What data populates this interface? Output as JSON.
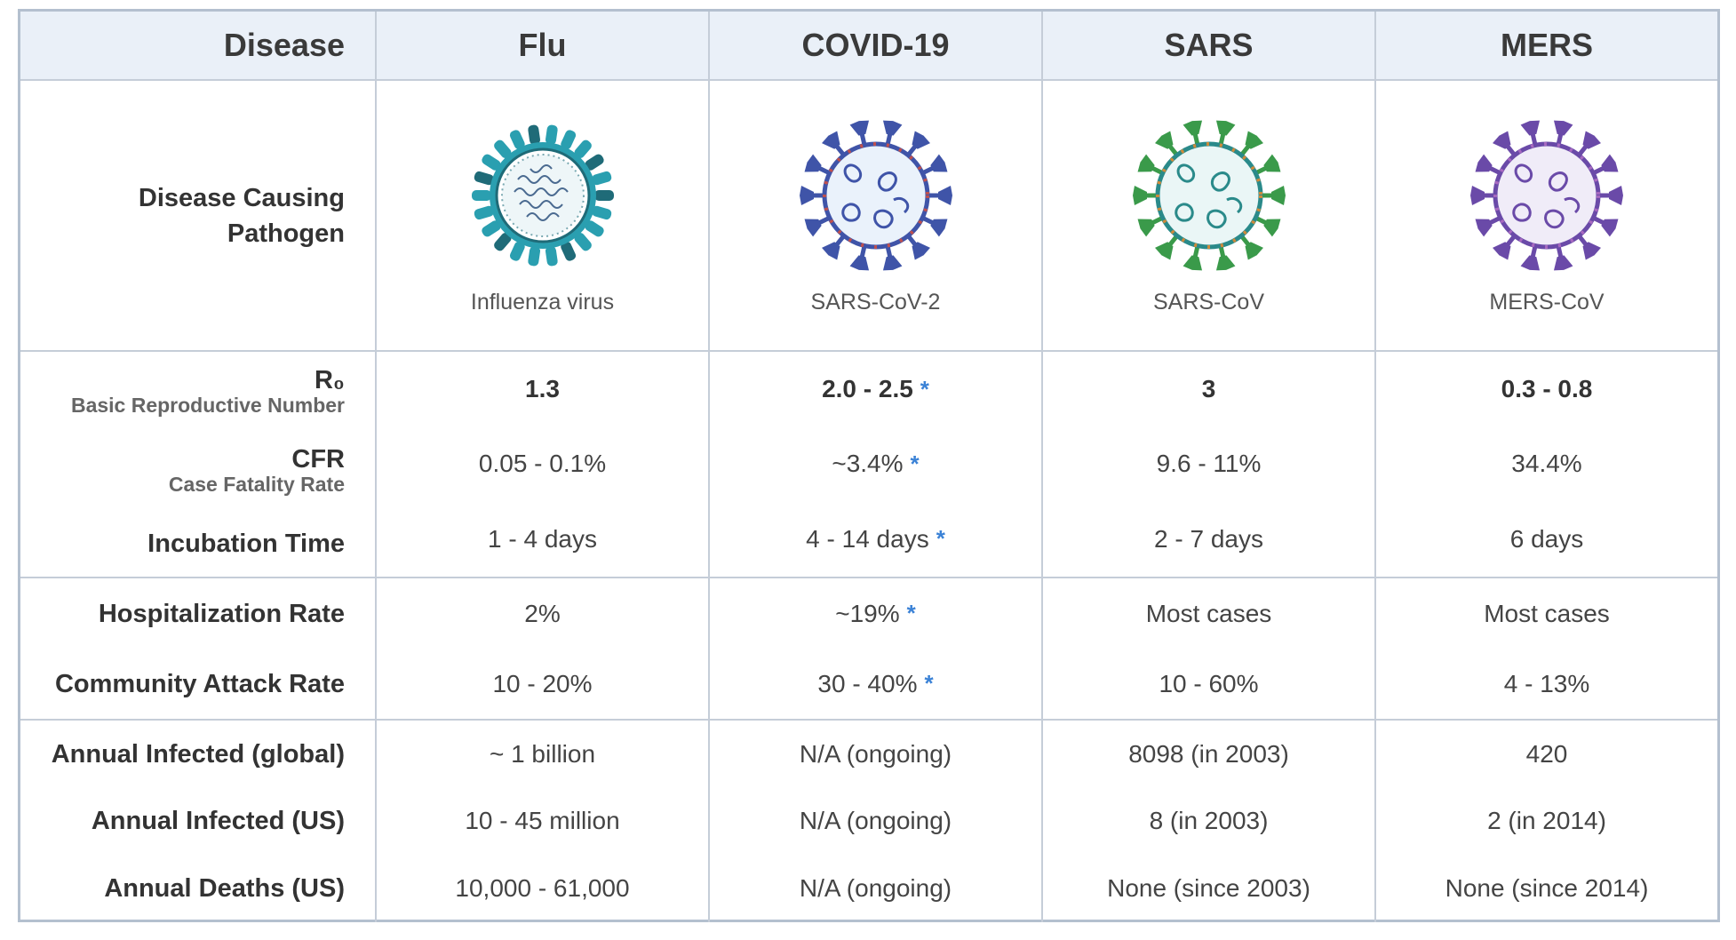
{
  "header": {
    "label": "Disease",
    "diseases": [
      "Flu",
      "COVID-19",
      "SARS",
      "MERS"
    ]
  },
  "pathogen_row": {
    "label": "Disease Causing Pathogen",
    "names": [
      "Influenza virus",
      "SARS-CoV-2",
      "SARS-CoV",
      "MERS-CoV"
    ],
    "icons": [
      "influenza-virus-icon",
      "sars-cov-2-icon",
      "sars-cov-icon",
      "mers-cov-icon"
    ]
  },
  "labels": {
    "r0": "R₀",
    "r0_sub": "Basic Reproductive Number",
    "cfr": "CFR",
    "cfr_sub": "Case Fatality Rate",
    "incubation": "Incubation Time",
    "hospitalization": "Hospitalization Rate",
    "attack": "Community Attack Rate",
    "infected_global": "Annual Infected (global)",
    "infected_us": "Annual Infected (US)",
    "deaths_us": "Annual Deaths (US)"
  },
  "star": "*",
  "values": {
    "flu": {
      "r0": "1.3",
      "cfr": "0.05 - 0.1%",
      "incubation": "1 - 4 days",
      "hospitalization": "2%",
      "attack": "10 - 20%",
      "infected_global": "~ 1 billion",
      "infected_us": "10 - 45 million",
      "deaths_us": "10,000 - 61,000"
    },
    "covid": {
      "r0": "2.0 - 2.5",
      "cfr": "~3.4%",
      "incubation": "4 - 14 days",
      "hospitalization": "~19%",
      "attack": "30 - 40%",
      "infected_global": "N/A (ongoing)",
      "infected_us": "N/A (ongoing)",
      "deaths_us": "N/A (ongoing)"
    },
    "sars": {
      "r0": "3",
      "cfr": "9.6 - 11%",
      "incubation": "2 - 7 days",
      "hospitalization": "Most cases",
      "attack": "10 - 60%",
      "infected_global": "8098 (in 2003)",
      "infected_us": "8 (in 2003)",
      "deaths_us": "None (since 2003)"
    },
    "mers": {
      "r0": "0.3 - 0.8",
      "cfr": "34.4%",
      "incubation": "6 days",
      "hospitalization": "Most cases",
      "attack": "4 - 13%",
      "infected_global": "420",
      "infected_us": "2 (in 2014)",
      "deaths_us": "None (since 2014)"
    }
  },
  "colors": {
    "flu": "#2a9fb0",
    "covid": "#3f54a8",
    "sars": "#3a9a4a",
    "mers": "#6a4aa8",
    "star": "#3b82d6",
    "header_bg": "#eaf0f8"
  }
}
